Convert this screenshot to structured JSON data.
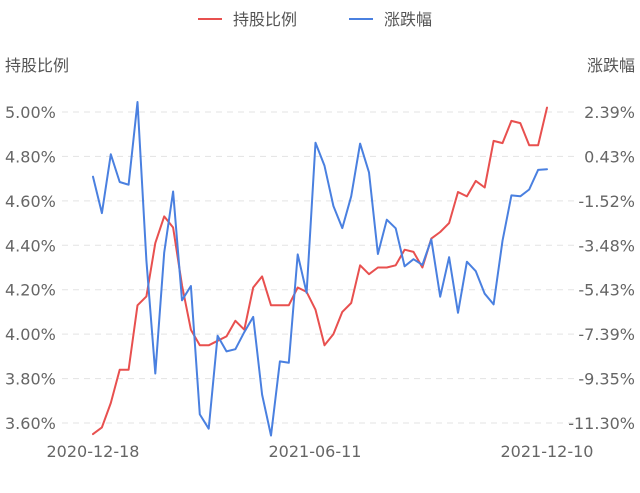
{
  "chart_data": {
    "type": "line",
    "legend": {
      "position": "top-center"
    },
    "grid": true,
    "y_left_label": "持股比例",
    "y_right_label": "涨跌幅",
    "y_left_ticks": [
      "3.60%",
      "3.80%",
      "4.00%",
      "4.20%",
      "4.40%",
      "4.60%",
      "4.80%",
      "5.00%"
    ],
    "y_right_ticks": [
      "-11.30%",
      "-9.35%",
      "-7.39%",
      "-5.43%",
      "-3.48%",
      "-1.52%",
      "0.43%",
      "2.39%"
    ],
    "x_ticks": [
      "2020-12-18",
      "2021-06-11",
      "2021-12-10"
    ],
    "y_left_range": [
      3.6,
      5.0
    ],
    "y_right_range": [
      -11.3,
      2.39
    ],
    "series": [
      {
        "name": "持股比例",
        "color": "#e8504f",
        "axis": "left",
        "values": [
          3.55,
          3.58,
          3.69,
          3.84,
          3.84,
          4.13,
          4.17,
          4.41,
          4.53,
          4.48,
          4.22,
          4.02,
          3.95,
          3.95,
          3.97,
          3.99,
          4.06,
          4.02,
          4.21,
          4.26,
          4.13,
          4.13,
          4.13,
          4.21,
          4.19,
          4.11,
          3.95,
          4.0,
          4.1,
          4.14,
          4.31,
          4.27,
          4.3,
          4.3,
          4.31,
          4.38,
          4.37,
          4.3,
          4.43,
          4.46,
          4.5,
          4.64,
          4.62,
          4.69,
          4.66,
          4.87,
          4.86,
          4.96,
          4.95,
          4.85,
          4.85,
          5.02
        ]
      },
      {
        "name": "涨跌幅",
        "color": "#4a80e0",
        "axis": "right",
        "values": [
          -0.46,
          -2.06,
          0.53,
          -0.69,
          -0.81,
          2.83,
          -4.15,
          -9.12,
          -3.8,
          -1.11,
          -5.9,
          -5.27,
          -10.92,
          -11.55,
          -7.46,
          -8.15,
          -8.05,
          -7.3,
          -6.63,
          -10.05,
          -11.85,
          -8.59,
          -8.65,
          -3.88,
          -5.57,
          1.04,
          0.02,
          -1.75,
          -2.72,
          -1.32,
          1.0,
          -0.27,
          -3.86,
          -2.35,
          -2.73,
          -4.4,
          -4.09,
          -4.34,
          -3.22,
          -5.74,
          -4.0,
          -6.45,
          -4.2,
          -4.62,
          -5.61,
          -6.08,
          -3.28,
          -1.28,
          -1.32,
          -1.02,
          -0.16,
          -0.13
        ]
      }
    ]
  }
}
